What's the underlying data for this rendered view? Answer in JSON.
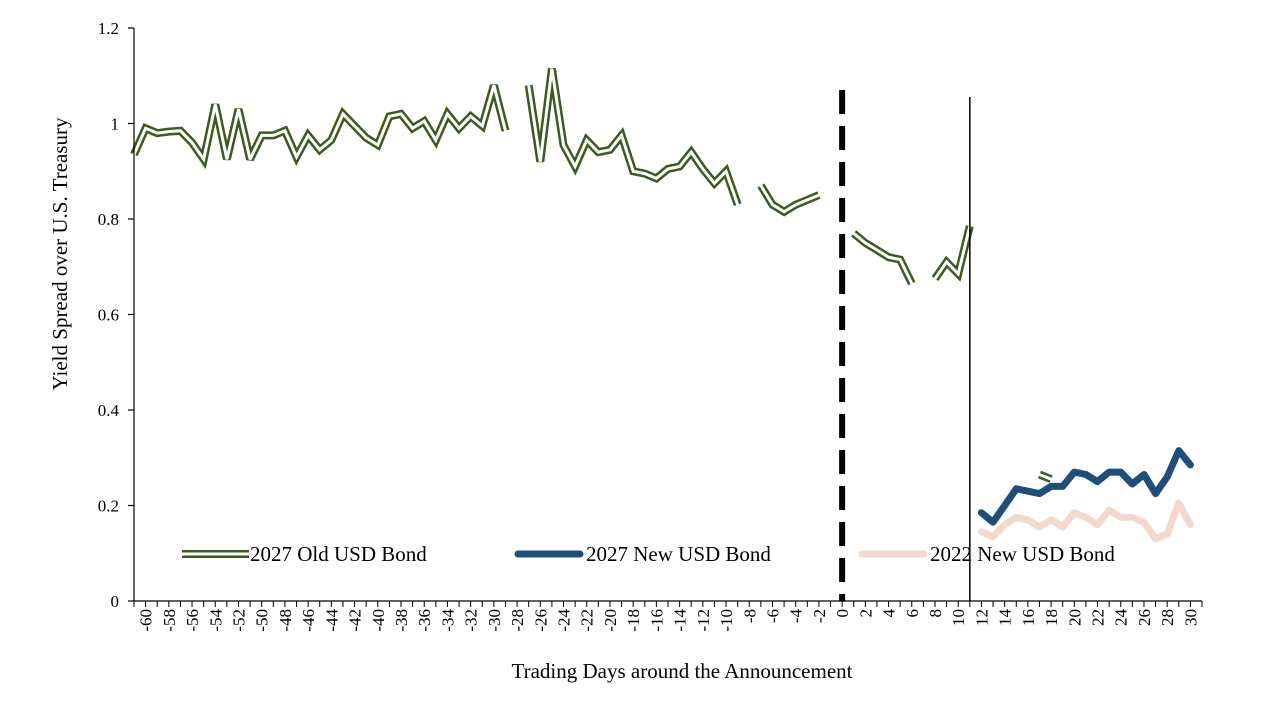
{
  "chart_data": {
    "type": "line",
    "title": "",
    "xlabel": "Trading Days around the Announcement",
    "ylabel": "Yield Spread over U.S. Treasury",
    "xlim": [
      -61,
      31
    ],
    "ylim": [
      0,
      1.2
    ],
    "yticks": [
      0,
      0.2,
      0.4,
      0.6,
      0.8,
      1,
      1.2
    ],
    "ytick_labels": [
      "0",
      "0.2",
      "0.4",
      "0.6",
      "0.8",
      "1",
      "1.2"
    ],
    "xticks": [
      -60,
      -58,
      -56,
      -54,
      -52,
      -50,
      -48,
      -46,
      -44,
      -42,
      -40,
      -38,
      -36,
      -34,
      -32,
      -30,
      -28,
      -26,
      -24,
      -22,
      -20,
      -18,
      -16,
      -14,
      -12,
      -10,
      -8,
      -6,
      -4,
      -2,
      0,
      2,
      4,
      6,
      8,
      10,
      12,
      14,
      16,
      18,
      20,
      22,
      24,
      26,
      28,
      30
    ],
    "xtick_labels": [
      "-60",
      "-58",
      "-56",
      "-54",
      "-52",
      "-50",
      "-48",
      "-46",
      "-44",
      "-42",
      "-40",
      "-38",
      "-36",
      "-34",
      "-32",
      "-30",
      "-28",
      "-26",
      "-24",
      "-22",
      "-20",
      "-18",
      "-16",
      "-14",
      "-12",
      "-10",
      "-8",
      "-6",
      "-4",
      "-2",
      "0",
      "2",
      "4",
      "6",
      "8",
      "10",
      "12",
      "14",
      "16",
      "18",
      "20",
      "22",
      "24",
      "26",
      "28",
      "30"
    ],
    "grid": false,
    "legend_position": "bottom",
    "vertical_markers": [
      {
        "x": 0,
        "style": "dashed"
      },
      {
        "x": 11,
        "style": "solid"
      }
    ],
    "series": [
      {
        "name": "2027 Old USD Bond",
        "color": "#3d5a1f",
        "style": "double",
        "segments": [
          [
            [
              -61,
              0.935
            ],
            [
              -60,
              0.99
            ],
            [
              -59,
              0.98
            ],
            [
              -58,
              0.983
            ],
            [
              -57,
              0.985
            ],
            [
              -56,
              0.96
            ],
            [
              -55,
              0.925
            ],
            [
              -54,
              1.04
            ],
            [
              -53,
              0.925
            ],
            [
              -52,
              1.03
            ],
            [
              -51,
              0.925
            ],
            [
              -50,
              0.975
            ],
            [
              -49,
              0.975
            ],
            [
              -48,
              0.985
            ],
            [
              -47,
              0.93
            ],
            [
              -46,
              0.975
            ],
            [
              -45,
              0.945
            ],
            [
              -44,
              0.965
            ],
            [
              -43,
              1.02
            ],
            [
              -42,
              0.995
            ],
            [
              -41,
              0.97
            ],
            [
              -40,
              0.955
            ],
            [
              -39,
              1.015
            ],
            [
              -38,
              1.02
            ],
            [
              -37,
              0.99
            ],
            [
              -36,
              1.005
            ],
            [
              -35,
              0.965
            ],
            [
              -34,
              1.02
            ],
            [
              -33,
              0.99
            ],
            [
              -32,
              1.015
            ],
            [
              -31,
              0.995
            ],
            [
              -30,
              1.08
            ],
            [
              -29,
              0.985
            ]
          ],
          [
            [
              -27,
              1.08
            ],
            [
              -26,
              0.92
            ],
            [
              -25,
              1.115
            ],
            [
              -24,
              0.955
            ],
            [
              -23,
              0.91
            ],
            [
              -22,
              0.965
            ],
            [
              -21,
              0.94
            ],
            [
              -20,
              0.945
            ],
            [
              -19,
              0.975
            ],
            [
              -18,
              0.9
            ],
            [
              -17,
              0.895
            ],
            [
              -16,
              0.885
            ],
            [
              -15,
              0.905
            ],
            [
              -14,
              0.91
            ],
            [
              -13,
              0.94
            ],
            [
              -12,
              0.905
            ],
            [
              -11,
              0.875
            ],
            [
              -10,
              0.9
            ],
            [
              -9,
              0.83
            ]
          ],
          [
            [
              -7,
              0.87
            ],
            [
              -6,
              0.83
            ],
            [
              -5,
              0.815
            ],
            [
              -4,
              0.83
            ],
            [
              -3,
              0.84
            ],
            [
              -2,
              0.85
            ]
          ],
          [
            [
              1,
              0.77
            ],
            [
              2,
              0.75
            ],
            [
              3,
              0.735
            ],
            [
              4,
              0.72
            ],
            [
              5,
              0.715
            ],
            [
              6,
              0.665
            ]
          ],
          [
            [
              8,
              0.675
            ],
            [
              9,
              0.71
            ],
            [
              10,
              0.685
            ],
            [
              11,
              0.785
            ]
          ],
          [
            [
              17,
              0.265
            ],
            [
              18,
              0.255
            ]
          ]
        ]
      },
      {
        "name": "2027 New USD Bond",
        "color": "#1f4e79",
        "style": "solid",
        "segments": [
          [
            [
              12,
              0.185
            ],
            [
              13,
              0.165
            ],
            [
              14,
              0.2
            ],
            [
              15,
              0.235
            ],
            [
              16,
              0.23
            ],
            [
              17,
              0.225
            ],
            [
              18,
              0.24
            ],
            [
              19,
              0.24
            ],
            [
              20,
              0.27
            ],
            [
              21,
              0.265
            ],
            [
              22,
              0.25
            ],
            [
              23,
              0.27
            ],
            [
              24,
              0.27
            ],
            [
              25,
              0.245
            ],
            [
              26,
              0.265
            ],
            [
              27,
              0.225
            ],
            [
              28,
              0.26
            ],
            [
              29,
              0.315
            ],
            [
              30,
              0.285
            ]
          ]
        ]
      },
      {
        "name": "2022 New USD Bond",
        "color": "#f2d9cb",
        "style": "solid",
        "segments": [
          [
            [
              12,
              0.145
            ],
            [
              13,
              0.135
            ],
            [
              14,
              0.16
            ],
            [
              15,
              0.175
            ],
            [
              16,
              0.17
            ],
            [
              17,
              0.155
            ],
            [
              18,
              0.17
            ],
            [
              19,
              0.155
            ],
            [
              20,
              0.185
            ],
            [
              21,
              0.175
            ],
            [
              22,
              0.16
            ],
            [
              23,
              0.19
            ],
            [
              24,
              0.175
            ],
            [
              25,
              0.175
            ],
            [
              26,
              0.165
            ],
            [
              27,
              0.13
            ],
            [
              28,
              0.14
            ],
            [
              29,
              0.205
            ],
            [
              30,
              0.16
            ]
          ]
        ]
      }
    ]
  }
}
